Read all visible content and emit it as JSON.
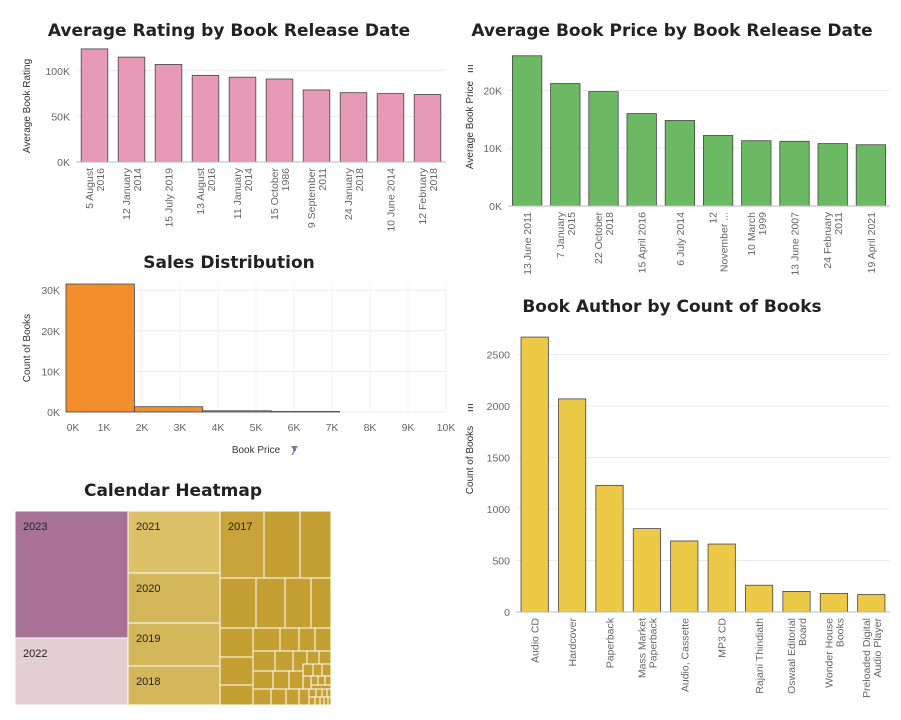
{
  "chart_data": [
    {
      "id": "rating",
      "type": "bar",
      "title": "Average Rating by Book Release Date",
      "xlabel": "",
      "ylabel": "Average Book Rating",
      "color": "#e69ab5",
      "ylim": [
        0,
        125000
      ],
      "yticks": [
        "0K",
        "50K",
        "100K"
      ],
      "categories": [
        [
          "5 August",
          "2016"
        ],
        [
          "12 January",
          "2014"
        ],
        [
          "15 July 2019"
        ],
        [
          "13 August",
          "2016"
        ],
        [
          "11 January",
          "2014"
        ],
        [
          "15 October",
          "1986"
        ],
        [
          "9 September",
          "2011"
        ],
        [
          "24 January",
          "2018"
        ],
        [
          "10 June 2014"
        ],
        [
          "12 February",
          "2018"
        ]
      ],
      "values": [
        124000,
        115000,
        107000,
        95000,
        93000,
        91000,
        79000,
        76000,
        75000,
        74000
      ]
    },
    {
      "id": "price",
      "type": "bar",
      "title": "Average Book Price by Book Release Date",
      "xlabel": "",
      "ylabel": "Average Book Price",
      "color": "#6cb963",
      "ylim": [
        0,
        27000
      ],
      "yticks": [
        "0K",
        "10K",
        "20K"
      ],
      "categories": [
        [
          "13 June 2011"
        ],
        [
          "7 January",
          "2015"
        ],
        [
          "22 October",
          "2018"
        ],
        [
          "15 April 2016"
        ],
        [
          "6 July 2014"
        ],
        [
          "12",
          "November ..."
        ],
        [
          "10 March",
          "1999"
        ],
        [
          "13 June 2007"
        ],
        [
          "24 February",
          "2011"
        ],
        [
          "19 April 2021"
        ]
      ],
      "values": [
        26000,
        21200,
        19800,
        16000,
        14800,
        12200,
        11300,
        11200,
        10800,
        10600
      ]
    },
    {
      "id": "sales",
      "type": "histogram",
      "title": "Sales Distribution",
      "xlabel": "Book Price",
      "ylabel": "Count of Books",
      "color": "#f28e2b",
      "xticks": [
        "0K",
        "1K",
        "2K",
        "3K",
        "4K",
        "5K",
        "6K",
        "7K",
        "8K",
        "9K",
        "10K"
      ],
      "yticks": [
        "0K",
        "10K",
        "20K",
        "30K"
      ],
      "ylim": [
        0,
        32000
      ],
      "bins": [
        {
          "from": 0,
          "to": 1800,
          "count": 31500
        },
        {
          "from": 1800,
          "to": 3600,
          "count": 1300
        },
        {
          "from": 3600,
          "to": 5400,
          "count": 300
        },
        {
          "from": 5400,
          "to": 7200,
          "count": 120
        }
      ]
    },
    {
      "id": "authors",
      "type": "bar",
      "title": "Book Author by Count of Books",
      "xlabel": "",
      "ylabel": "Count of Books",
      "color": "#edc948",
      "ylim": [
        0,
        2700
      ],
      "yticks": [
        "0",
        "500",
        "1000",
        "1500",
        "2000",
        "2500"
      ],
      "categories": [
        [
          "Audio CD"
        ],
        [
          "Hardcover"
        ],
        [
          "Paperback"
        ],
        [
          "Mass Market",
          "Paperback"
        ],
        [
          "Audio, Cassette"
        ],
        [
          "MP3 CD"
        ],
        [
          "Rajani Thindiath"
        ],
        [
          "Oswaal Editorial",
          "Board"
        ],
        [
          "Wonder House",
          "Books"
        ],
        [
          "Preloaded Digital",
          "Audio Player"
        ]
      ],
      "values": [
        2670,
        2070,
        1230,
        810,
        690,
        660,
        260,
        200,
        180,
        170
      ]
    },
    {
      "id": "heatmap",
      "type": "treemap",
      "title": "Calendar Heatmap",
      "labels": [
        "2023",
        "2022",
        "2021",
        "2020",
        "2019",
        "2018",
        "2017"
      ],
      "colors": {
        "2023": "#a87297",
        "2022": "#e3cfd1",
        "2021": "#dbc067",
        "2020": "#d4b75a",
        "2019": "#d4b75a",
        "2018": "#d4b75a",
        "2017": "#c9a43b",
        "older": "#c4a032"
      }
    }
  ]
}
